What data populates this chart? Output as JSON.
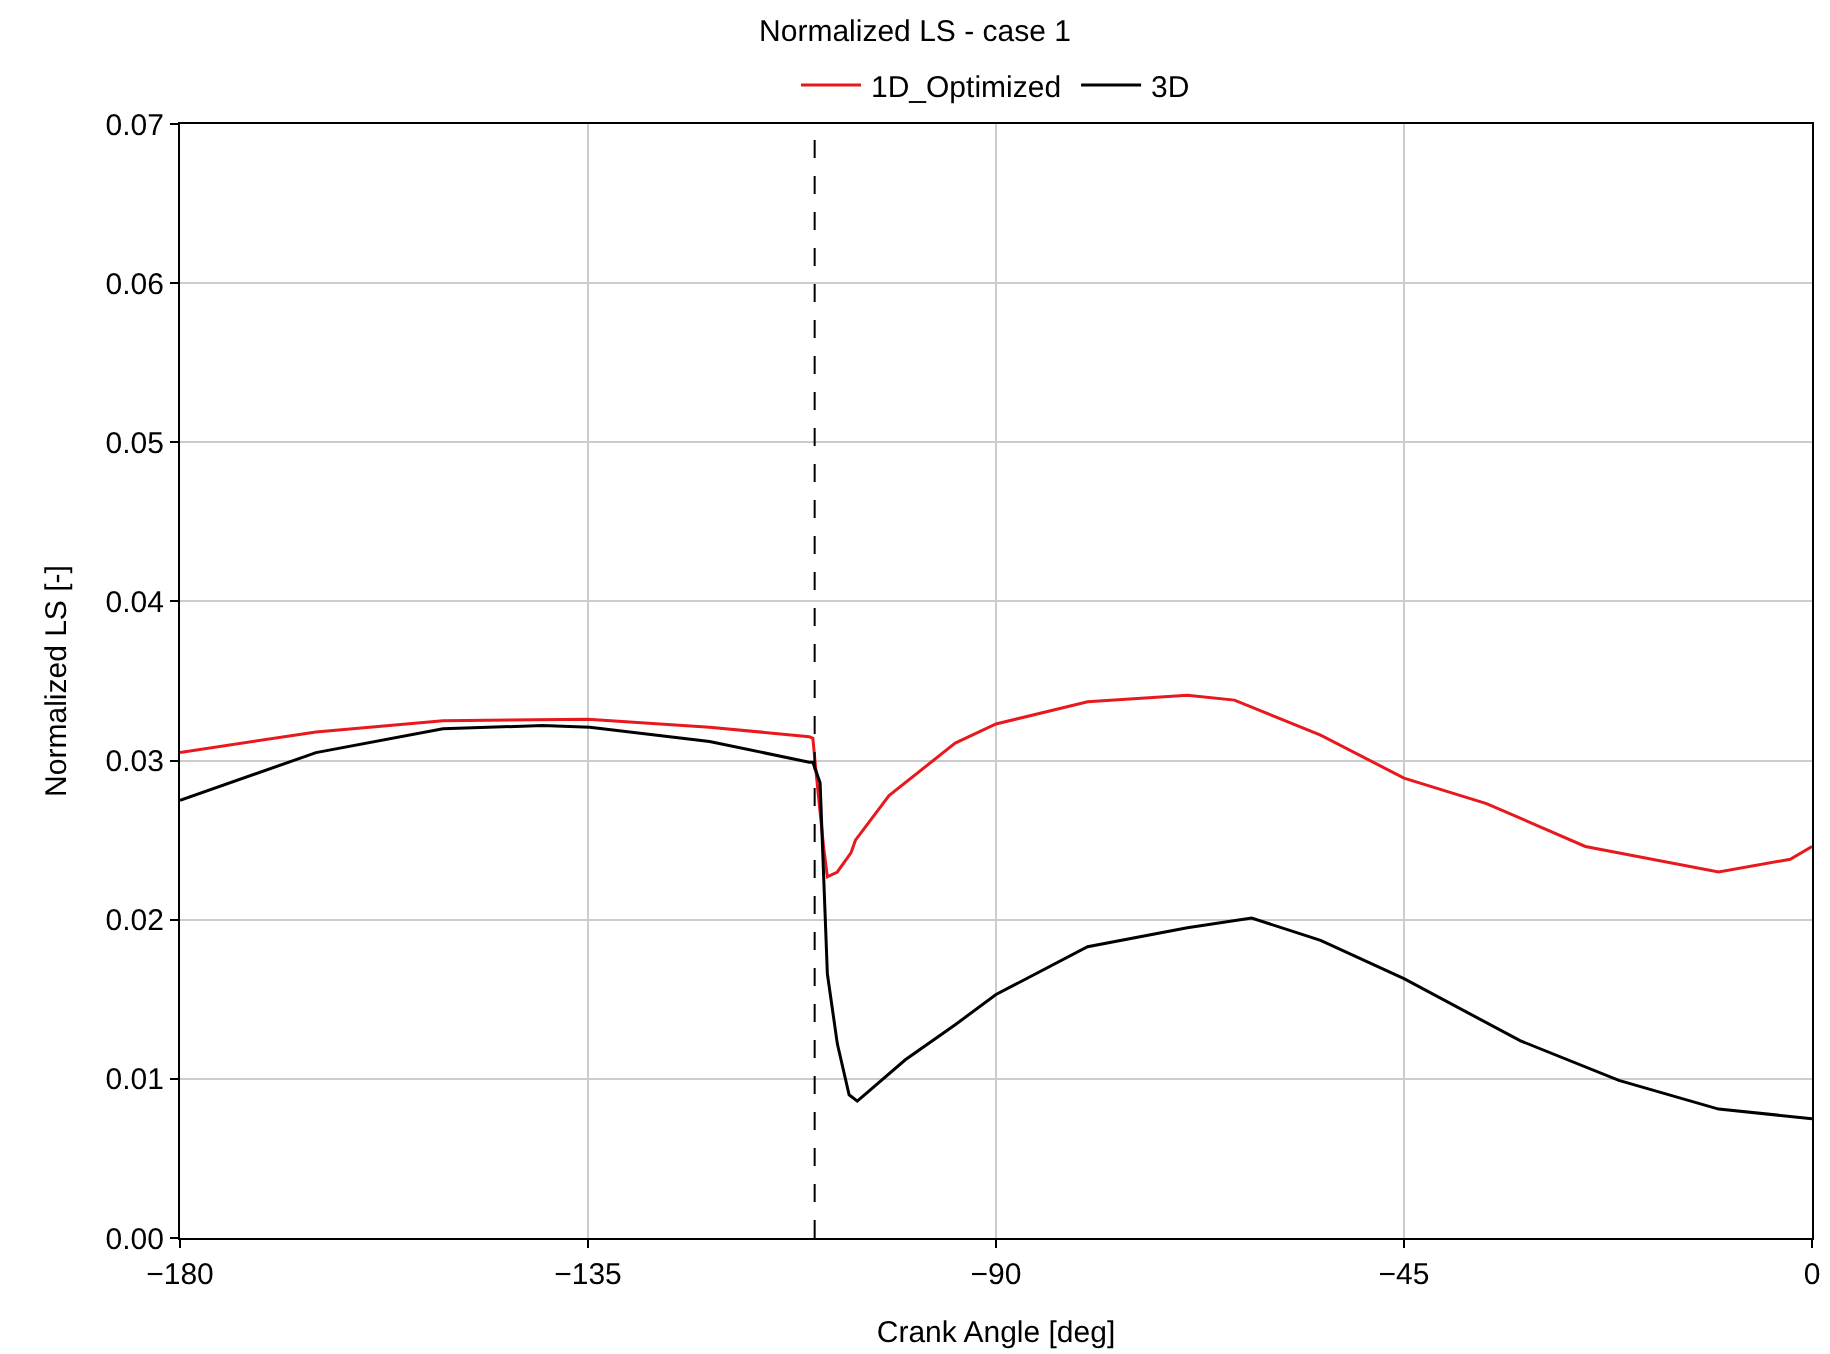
{
  "chart_data": {
    "type": "line",
    "title": "Normalized LS - case 1",
    "xlabel": "Crank Angle [deg]",
    "ylabel": "Normalized LS [-]",
    "xlim": [
      -180,
      0
    ],
    "xticks": [
      {
        "value": -180,
        "label": "−180"
      },
      {
        "value": -135,
        "label": "−135"
      },
      {
        "value": -90,
        "label": "−90"
      },
      {
        "value": -45,
        "label": "−45"
      },
      0
    ],
    "ylim": [
      0,
      0.07
    ],
    "yticks": [
      {
        "value": 0,
        "label": "0.00"
      },
      {
        "value": 0.01,
        "label": "0.01"
      },
      {
        "value": 0.02,
        "label": "0.02"
      },
      {
        "value": 0.03,
        "label": "0.03"
      },
      {
        "value": 0.04,
        "label": "0.04"
      },
      {
        "value": 0.05,
        "label": "0.05"
      },
      {
        "value": 0.06,
        "label": "0.06"
      },
      {
        "value": 0.07,
        "label": "0.07"
      }
    ],
    "grid": true,
    "legend": "top",
    "line_style": "solid",
    "marker": "none",
    "ref_lines": [
      {
        "axis": "x",
        "value": -110,
        "color": "#000000",
        "line_style": "dashed"
      }
    ],
    "series": [
      {
        "name": "1D_Optimized",
        "color": "#e8191e",
        "x": [
          -180,
          -165,
          -151,
          -135,
          -121.6,
          -110.6,
          -110.2,
          -109.8,
          -109,
          -108.6,
          -107.5,
          -106,
          -105.5,
          -101.8,
          -94.5,
          -90,
          -79.9,
          -68.9,
          -63.7,
          -54.2,
          -45,
          -35.9,
          -25,
          -10.3,
          -2.4,
          0
        ],
        "values": [
          0.0305,
          0.0318,
          0.0325,
          0.0326,
          0.0321,
          0.0315,
          0.0314,
          0.029,
          0.0245,
          0.0227,
          0.023,
          0.0242,
          0.025,
          0.0278,
          0.0311,
          0.0323,
          0.0337,
          0.0341,
          0.0338,
          0.0316,
          0.0289,
          0.0273,
          0.0246,
          0.023,
          0.0238,
          0.0246
        ]
      },
      {
        "name": "3D",
        "color": "#000000",
        "x": [
          -180,
          -165,
          -151,
          -140,
          -134.8,
          -121.6,
          -110.6,
          -110.2,
          -109.4,
          -108.6,
          -107.5,
          -106.2,
          -105.3,
          -100,
          -94.5,
          -90,
          -79.9,
          -68.9,
          -61.8,
          -54.2,
          -45,
          -32.2,
          -21.3,
          -10.3,
          0
        ],
        "values": [
          0.0275,
          0.0305,
          0.032,
          0.0322,
          0.0321,
          0.0312,
          0.0299,
          0.0299,
          0.0286,
          0.0166,
          0.0122,
          0.009,
          0.0086,
          0.0112,
          0.0134,
          0.0153,
          0.0183,
          0.0195,
          0.0201,
          0.0187,
          0.0163,
          0.0124,
          0.0099,
          0.0081,
          0.0075
        ]
      }
    ]
  }
}
